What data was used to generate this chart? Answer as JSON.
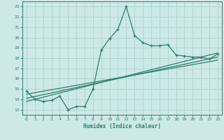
{
  "title": "",
  "xlabel": "Humidex (Indice chaleur)",
  "ylabel": "",
  "xlim": [
    -0.5,
    23.5
  ],
  "ylim": [
    12.5,
    23.5
  ],
  "xticks": [
    0,
    1,
    2,
    3,
    4,
    5,
    6,
    7,
    8,
    9,
    10,
    11,
    12,
    13,
    14,
    15,
    16,
    17,
    18,
    19,
    20,
    21,
    22,
    23
  ],
  "yticks": [
    13,
    14,
    15,
    16,
    17,
    18,
    19,
    20,
    21,
    22,
    23
  ],
  "bg_color": "#cce9e5",
  "grid_color": "#aad4cf",
  "line_color": "#2e7d70",
  "main_x": [
    0,
    1,
    2,
    3,
    4,
    5,
    6,
    7,
    8,
    9,
    10,
    11,
    12,
    13,
    14,
    15,
    16,
    17,
    18,
    19,
    20,
    21,
    22,
    23
  ],
  "main_y": [
    14.8,
    14.0,
    13.8,
    13.9,
    14.3,
    13.0,
    13.3,
    13.3,
    15.0,
    18.8,
    19.9,
    20.8,
    23.0,
    20.2,
    19.5,
    19.2,
    19.2,
    19.3,
    18.3,
    18.2,
    18.1,
    18.1,
    17.9,
    18.4
  ],
  "trend1_x": [
    0,
    23
  ],
  "trend1_y": [
    13.8,
    18.5
  ],
  "trend2_x": [
    0,
    23
  ],
  "trend2_y": [
    14.1,
    18.1
  ],
  "trend3_x": [
    0,
    23
  ],
  "trend3_y": [
    14.5,
    17.8
  ]
}
